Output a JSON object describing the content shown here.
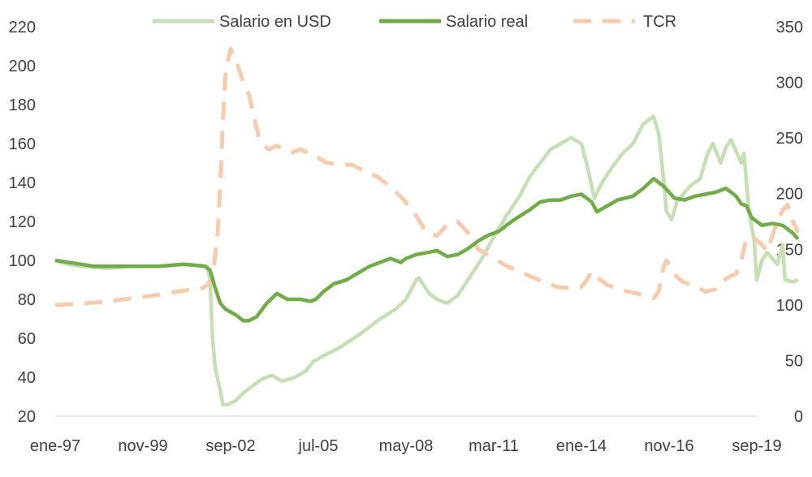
{
  "chart_data": {
    "type": "line",
    "title": "",
    "xlabel": "",
    "ylabel": "",
    "y2label": "",
    "grid": false,
    "legend_position": "top",
    "x_tick_labels": [
      "ene-97",
      "nov-99",
      "sep-02",
      "jul-05",
      "may-08",
      "mar-11",
      "ene-14",
      "nov-16",
      "sep-19"
    ],
    "x_tick_positions": [
      0,
      34,
      68,
      102,
      136,
      170,
      204,
      238,
      272
    ],
    "x_range": [
      0,
      272
    ],
    "y_left": {
      "range": [
        20,
        220
      ],
      "ticks": [
        "20",
        "40",
        "60",
        "80",
        "100",
        "120",
        "140",
        "160",
        "180",
        "200",
        "220"
      ]
    },
    "y_right": {
      "range": [
        0,
        350
      ],
      "ticks": [
        "0",
        "50",
        "100",
        "150",
        "200",
        "250",
        "300",
        "350"
      ]
    },
    "series": [
      {
        "name": "Salario en USD",
        "axis": "left",
        "color": "#c5e0b4",
        "style": "solid",
        "points": [
          [
            0,
            100
          ],
          [
            5,
            98
          ],
          [
            10,
            97
          ],
          [
            20,
            96
          ],
          [
            30,
            97
          ],
          [
            40,
            97
          ],
          [
            50,
            98
          ],
          [
            59,
            97
          ],
          [
            60,
            90
          ],
          [
            61,
            60
          ],
          [
            62,
            45
          ],
          [
            64,
            33
          ],
          [
            65,
            26
          ],
          [
            67,
            26
          ],
          [
            70,
            28
          ],
          [
            73,
            32
          ],
          [
            76,
            35
          ],
          [
            80,
            39
          ],
          [
            84,
            41
          ],
          [
            88,
            38
          ],
          [
            93,
            40
          ],
          [
            97,
            43
          ],
          [
            100,
            48
          ],
          [
            104,
            51
          ],
          [
            110,
            55
          ],
          [
            118,
            62
          ],
          [
            126,
            70
          ],
          [
            132,
            75
          ],
          [
            136,
            80
          ],
          [
            138,
            85
          ],
          [
            140,
            90
          ],
          [
            141,
            91
          ],
          [
            143,
            87
          ],
          [
            145,
            83
          ],
          [
            148,
            80
          ],
          [
            152,
            78
          ],
          [
            156,
            82
          ],
          [
            160,
            90
          ],
          [
            165,
            100
          ],
          [
            170,
            112
          ],
          [
            175,
            123
          ],
          [
            180,
            133
          ],
          [
            184,
            143
          ],
          [
            188,
            150
          ],
          [
            192,
            157
          ],
          [
            196,
            160
          ],
          [
            200,
            163
          ],
          [
            204,
            160
          ],
          [
            206,
            150
          ],
          [
            208,
            138
          ],
          [
            209,
            132
          ],
          [
            212,
            140
          ],
          [
            216,
            148
          ],
          [
            220,
            155
          ],
          [
            224,
            160
          ],
          [
            228,
            170
          ],
          [
            232,
            174
          ],
          [
            234,
            165
          ],
          [
            236,
            140
          ],
          [
            237,
            125
          ],
          [
            239,
            121
          ],
          [
            241,
            130
          ],
          [
            246,
            138
          ],
          [
            250,
            142
          ],
          [
            253,
            155
          ],
          [
            255,
            160
          ],
          [
            258,
            150
          ],
          [
            260,
            158
          ],
          [
            262,
            162
          ],
          [
            264,
            156
          ],
          [
            266,
            150
          ],
          [
            267,
            155
          ],
          [
            269,
            125
          ],
          [
            271,
            110
          ],
          [
            272,
            90
          ],
          [
            274,
            100
          ],
          [
            276,
            104
          ],
          [
            280,
            98
          ],
          [
            282,
            108
          ],
          [
            283,
            90
          ],
          [
            286,
            89
          ],
          [
            288,
            90
          ]
        ]
      },
      {
        "name": "Salario real",
        "axis": "left",
        "color": "#70ad47",
        "style": "solid",
        "points": [
          [
            0,
            100
          ],
          [
            5,
            99
          ],
          [
            10,
            98
          ],
          [
            15,
            97
          ],
          [
            20,
            97
          ],
          [
            30,
            97
          ],
          [
            40,
            97
          ],
          [
            50,
            98
          ],
          [
            58,
            97
          ],
          [
            60,
            95
          ],
          [
            62,
            86
          ],
          [
            64,
            78
          ],
          [
            66,
            75
          ],
          [
            70,
            72
          ],
          [
            73,
            69
          ],
          [
            75,
            69
          ],
          [
            78,
            71
          ],
          [
            82,
            78
          ],
          [
            86,
            83
          ],
          [
            90,
            80
          ],
          [
            95,
            80
          ],
          [
            99,
            79
          ],
          [
            101,
            80
          ],
          [
            104,
            84
          ],
          [
            108,
            88
          ],
          [
            113,
            90
          ],
          [
            118,
            94
          ],
          [
            122,
            97
          ],
          [
            126,
            99
          ],
          [
            130,
            101
          ],
          [
            134,
            99
          ],
          [
            136,
            101
          ],
          [
            140,
            103
          ],
          [
            144,
            104
          ],
          [
            148,
            105
          ],
          [
            152,
            102
          ],
          [
            156,
            103
          ],
          [
            160,
            106
          ],
          [
            164,
            110
          ],
          [
            168,
            113
          ],
          [
            172,
            115
          ],
          [
            178,
            121
          ],
          [
            184,
            126
          ],
          [
            188,
            130
          ],
          [
            192,
            131
          ],
          [
            196,
            131
          ],
          [
            200,
            133
          ],
          [
            204,
            134
          ],
          [
            208,
            130
          ],
          [
            210,
            125
          ],
          [
            214,
            128
          ],
          [
            218,
            131
          ],
          [
            224,
            133
          ],
          [
            228,
            137
          ],
          [
            232,
            142
          ],
          [
            236,
            138
          ],
          [
            240,
            132
          ],
          [
            244,
            131
          ],
          [
            248,
            133
          ],
          [
            252,
            134
          ],
          [
            256,
            135
          ],
          [
            260,
            137
          ],
          [
            264,
            133
          ],
          [
            266,
            129
          ],
          [
            268,
            128
          ],
          [
            270,
            122
          ],
          [
            274,
            118
          ],
          [
            278,
            119
          ],
          [
            282,
            118
          ],
          [
            284,
            116
          ],
          [
            286,
            114
          ],
          [
            288,
            111
          ]
        ]
      },
      {
        "name": "TCR",
        "axis": "right",
        "color": "#f8cbad",
        "style": "dashed",
        "points": [
          [
            0,
            100
          ],
          [
            10,
            101
          ],
          [
            20,
            103
          ],
          [
            30,
            106
          ],
          [
            40,
            109
          ],
          [
            50,
            113
          ],
          [
            57,
            115
          ],
          [
            59,
            118
          ],
          [
            61,
            125
          ],
          [
            63,
            165
          ],
          [
            64,
            210
          ],
          [
            65,
            265
          ],
          [
            66,
            305
          ],
          [
            67,
            320
          ],
          [
            68,
            330
          ],
          [
            70,
            320
          ],
          [
            73,
            300
          ],
          [
            75,
            290
          ],
          [
            77,
            270
          ],
          [
            79,
            250
          ],
          [
            81,
            243
          ],
          [
            83,
            240
          ],
          [
            86,
            243
          ],
          [
            89,
            239
          ],
          [
            92,
            237
          ],
          [
            95,
            240
          ],
          [
            100,
            235
          ],
          [
            105,
            228
          ],
          [
            110,
            226
          ],
          [
            115,
            226
          ],
          [
            120,
            220
          ],
          [
            125,
            215
          ],
          [
            130,
            206
          ],
          [
            135,
            195
          ],
          [
            140,
            180
          ],
          [
            144,
            165
          ],
          [
            148,
            162
          ],
          [
            152,
            172
          ],
          [
            156,
            175
          ],
          [
            160,
            165
          ],
          [
            164,
            150
          ],
          [
            170,
            142
          ],
          [
            175,
            135
          ],
          [
            180,
            130
          ],
          [
            185,
            125
          ],
          [
            190,
            120
          ],
          [
            195,
            116
          ],
          [
            200,
            115
          ],
          [
            204,
            116
          ],
          [
            206,
            122
          ],
          [
            208,
            130
          ],
          [
            210,
            125
          ],
          [
            214,
            118
          ],
          [
            220,
            113
          ],
          [
            226,
            110
          ],
          [
            230,
            107
          ],
          [
            232,
            106
          ],
          [
            234,
            112
          ],
          [
            236,
            135
          ],
          [
            237,
            140
          ],
          [
            239,
            132
          ],
          [
            241,
            125
          ],
          [
            244,
            120
          ],
          [
            248,
            117
          ],
          [
            252,
            112
          ],
          [
            256,
            114
          ],
          [
            259,
            122
          ],
          [
            262,
            126
          ],
          [
            264,
            128
          ],
          [
            266,
            140
          ],
          [
            268,
            160
          ],
          [
            270,
            162
          ],
          [
            272,
            158
          ],
          [
            274,
            154
          ],
          [
            276,
            148
          ],
          [
            278,
            162
          ],
          [
            280,
            175
          ],
          [
            282,
            185
          ],
          [
            284,
            190
          ],
          [
            286,
            175
          ],
          [
            288,
            165
          ]
        ]
      }
    ]
  }
}
